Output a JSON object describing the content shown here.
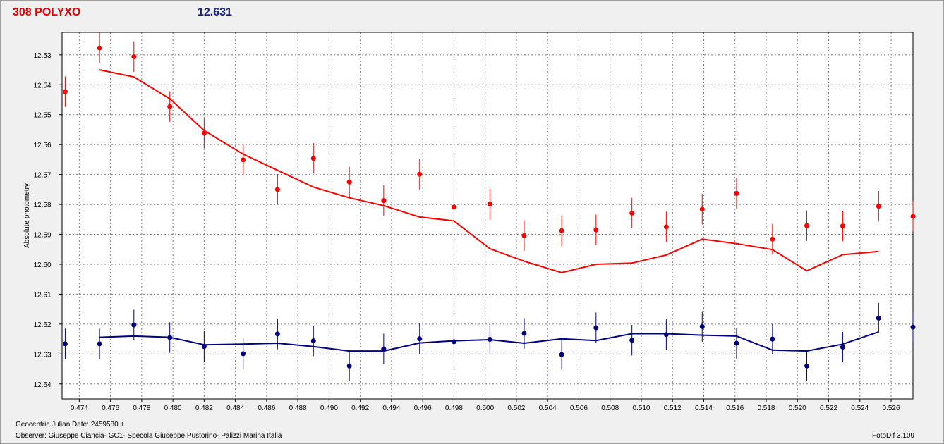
{
  "header": {
    "object_name": "308 POLYXO",
    "magnitude": "12.631"
  },
  "footer": {
    "date_label": "Geocentric Julian Date: 2459580 +",
    "observer": "Observer: Giuseppe Ciancia- GC1- Specola Giuseppe Pustorino- Palizzi Marina Italia",
    "software": "FotoDif 3.109"
  },
  "colors": {
    "target": "#ff0000",
    "comparison": "#000080",
    "plot_bg": "#ffffff",
    "grid": "#808080"
  },
  "chart_data": {
    "type": "scatter",
    "title": "",
    "xlabel": "",
    "ylabel": "Absolute photometry",
    "xlim": [
      0.4729,
      0.5274
    ],
    "ylim": [
      12.5225,
      12.645
    ],
    "y_inverted": true,
    "grid": true,
    "x_ticks": [
      0.474,
      0.476,
      0.478,
      0.48,
      0.482,
      0.484,
      0.486,
      0.488,
      0.49,
      0.492,
      0.494,
      0.496,
      0.498,
      0.5,
      0.502,
      0.504,
      0.506,
      0.508,
      0.51,
      0.512,
      0.514,
      0.516,
      0.518,
      0.52,
      0.522,
      0.524,
      0.526
    ],
    "x_tick_labels": [
      "0.474",
      "0.476",
      "0.478",
      "0.480",
      "0.482",
      "0.484",
      "0.486",
      "0.488",
      "0.490",
      "0.492",
      "0.494",
      "0.496",
      "0.498",
      "0.500",
      "0.502",
      "0.504",
      "0.506",
      "0.508",
      "0.510",
      "0.512",
      "0.514",
      "0.516",
      "0.518",
      "0.520",
      "0.522",
      "0.524",
      "0.526"
    ],
    "y_ticks": [
      12.53,
      12.54,
      12.55,
      12.56,
      12.57,
      12.58,
      12.59,
      12.6,
      12.61,
      12.62,
      12.63,
      12.64
    ],
    "y_tick_labels": [
      "12.53",
      "12.54",
      "12.55",
      "12.56",
      "12.57",
      "12.58",
      "12.59",
      "12.60",
      "12.61",
      "12.62",
      "12.63",
      "12.64"
    ],
    "series": [
      {
        "key": "target",
        "x": [
          0.4731,
          0.4753,
          0.4775,
          0.4798,
          0.482,
          0.4845,
          0.4867,
          0.489,
          0.4913,
          0.4935,
          0.4958,
          0.498,
          0.5003,
          0.5025,
          0.5049,
          0.5071,
          0.5094,
          0.5116,
          0.5139,
          0.5161,
          0.5184,
          0.5206,
          0.5229,
          0.5252,
          0.5274
        ],
        "y": [
          12.5423,
          12.5277,
          12.5306,
          12.5473,
          12.5562,
          12.5651,
          12.575,
          12.5646,
          12.5725,
          12.5787,
          12.5699,
          12.5809,
          12.5799,
          12.5904,
          12.5888,
          12.5885,
          12.5829,
          12.5875,
          12.5816,
          12.5763,
          12.5916,
          12.5871,
          12.5872,
          12.5806,
          12.584
        ],
        "err": [
          0.0051,
          0.0051,
          0.0051,
          0.0051,
          0.0051,
          0.0051,
          0.0051,
          0.0051,
          0.0051,
          0.0051,
          0.0051,
          0.0051,
          0.0051,
          0.0051,
          0.0051,
          0.0051,
          0.0051,
          0.0051,
          0.0051,
          0.0051,
          0.0051,
          0.0051,
          0.0051,
          0.0051,
          0.0051
        ],
        "fit_x": [
          0.4753,
          0.4775,
          0.4798,
          0.482,
          0.4845,
          0.4867,
          0.489,
          0.4913,
          0.4935,
          0.4958,
          0.498,
          0.5003,
          0.5025,
          0.5049,
          0.5071,
          0.5094,
          0.5116,
          0.5139,
          0.5161,
          0.5184,
          0.5206,
          0.5229,
          0.5252
        ],
        "fit_y": [
          12.535,
          12.5374,
          12.5447,
          12.5553,
          12.5632,
          12.5686,
          12.5742,
          12.5778,
          12.5804,
          12.5842,
          12.5855,
          12.5948,
          12.599,
          12.6028,
          12.6,
          12.5996,
          12.5969,
          12.5916,
          12.5931,
          12.5951,
          12.6022,
          12.5968,
          12.5957
        ]
      },
      {
        "key": "comparison",
        "x": [
          0.4731,
          0.4753,
          0.4775,
          0.4798,
          0.482,
          0.4845,
          0.4867,
          0.489,
          0.4913,
          0.4935,
          0.4958,
          0.498,
          0.5003,
          0.5025,
          0.5049,
          0.5071,
          0.5094,
          0.5116,
          0.5139,
          0.5161,
          0.5184,
          0.5206,
          0.5229,
          0.5252,
          0.5274
        ],
        "y": [
          12.6266,
          12.6266,
          12.6203,
          12.6245,
          12.6275,
          12.6299,
          12.6233,
          12.6256,
          12.634,
          12.6283,
          12.6249,
          12.6259,
          12.6251,
          12.6231,
          12.6302,
          12.6212,
          12.6254,
          12.6235,
          12.6208,
          12.6264,
          12.625,
          12.634,
          12.6277,
          12.618,
          12.621
        ],
        "err": [
          0.0051,
          0.0051,
          0.0051,
          0.0051,
          0.0051,
          0.0051,
          0.0051,
          0.0051,
          0.0051,
          0.0051,
          0.0051,
          0.0051,
          0.0051,
          0.0051,
          0.0051,
          0.0051,
          0.0051,
          0.0051,
          0.0051,
          0.0051,
          0.0051,
          0.0051,
          0.0051,
          0.0051,
          0.0051
        ],
        "fit_x": [
          0.4753,
          0.4775,
          0.4798,
          0.482,
          0.4845,
          0.4867,
          0.489,
          0.4913,
          0.4935,
          0.4958,
          0.498,
          0.5003,
          0.5025,
          0.5049,
          0.5071,
          0.5094,
          0.5116,
          0.5139,
          0.5161,
          0.5184,
          0.5206,
          0.5229,
          0.5252
        ],
        "fit_y": [
          12.6244,
          12.624,
          12.6244,
          12.6269,
          12.6267,
          12.6264,
          12.6275,
          12.629,
          12.629,
          12.6263,
          12.6256,
          12.6252,
          12.6264,
          12.6249,
          12.6255,
          12.6232,
          12.6232,
          12.6237,
          12.624,
          12.6287,
          12.629,
          12.6267,
          12.6226
        ]
      }
    ]
  }
}
